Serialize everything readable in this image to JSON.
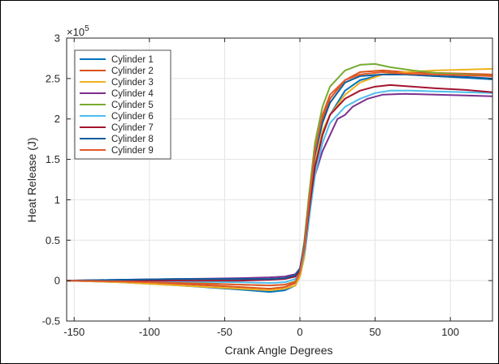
{
  "chart_data": {
    "type": "line",
    "xlabel": "Crank Angle Degrees",
    "ylabel": "Heat Release (J)",
    "y_exponent_label": "×10",
    "y_exponent_power": "5",
    "xlim": [
      -155,
      128
    ],
    "ylim": [
      -0.5,
      3
    ],
    "xticks": [
      -150,
      -100,
      -50,
      0,
      50,
      100
    ],
    "yticks": [
      -0.5,
      0,
      0.5,
      1,
      1.5,
      2,
      2.5,
      3
    ],
    "ytick_labels": [
      "-0.5",
      "0",
      "0.5",
      "1",
      "1.5",
      "2",
      "2.5",
      "3"
    ],
    "grid": true,
    "legend_position": "top-left",
    "series": [
      {
        "name": "Cylinder 1",
        "color": "#0072BD",
        "points": [
          [
            -155,
            0
          ],
          [
            -120,
            -0.02
          ],
          [
            -80,
            -0.06
          ],
          [
            -40,
            -0.11
          ],
          [
            -20,
            -0.14
          ],
          [
            -10,
            -0.12
          ],
          [
            -3,
            -0.06
          ],
          [
            0,
            0.05
          ],
          [
            3,
            0.3
          ],
          [
            6,
            0.75
          ],
          [
            10,
            1.4
          ],
          [
            15,
            1.8
          ],
          [
            20,
            2.05
          ],
          [
            30,
            2.35
          ],
          [
            40,
            2.48
          ],
          [
            55,
            2.55
          ],
          [
            70,
            2.55
          ],
          [
            90,
            2.53
          ],
          [
            110,
            2.51
          ],
          [
            128,
            2.49
          ]
        ]
      },
      {
        "name": "Cylinder 2",
        "color": "#D95319",
        "points": [
          [
            -155,
            0
          ],
          [
            -120,
            -0.01
          ],
          [
            -80,
            -0.04
          ],
          [
            -40,
            -0.08
          ],
          [
            -20,
            -0.1
          ],
          [
            -10,
            -0.08
          ],
          [
            -3,
            -0.03
          ],
          [
            0,
            0.1
          ],
          [
            3,
            0.4
          ],
          [
            6,
            0.9
          ],
          [
            10,
            1.55
          ],
          [
            15,
            2.0
          ],
          [
            20,
            2.25
          ],
          [
            30,
            2.48
          ],
          [
            40,
            2.58
          ],
          [
            55,
            2.6
          ],
          [
            70,
            2.58
          ],
          [
            90,
            2.57
          ],
          [
            110,
            2.56
          ],
          [
            128,
            2.55
          ]
        ]
      },
      {
        "name": "Cylinder 3",
        "color": "#EDB120",
        "points": [
          [
            -155,
            0
          ],
          [
            -120,
            -0.02
          ],
          [
            -80,
            -0.06
          ],
          [
            -40,
            -0.1
          ],
          [
            -20,
            -0.12
          ],
          [
            -10,
            -0.1
          ],
          [
            -3,
            -0.06
          ],
          [
            0,
            0.05
          ],
          [
            3,
            0.3
          ],
          [
            6,
            0.8
          ],
          [
            10,
            1.45
          ],
          [
            15,
            1.85
          ],
          [
            20,
            2.05
          ],
          [
            30,
            2.3
          ],
          [
            40,
            2.45
          ],
          [
            55,
            2.55
          ],
          [
            70,
            2.58
          ],
          [
            90,
            2.6
          ],
          [
            110,
            2.61
          ],
          [
            128,
            2.62
          ]
        ]
      },
      {
        "name": "Cylinder 4",
        "color": "#7E2F8E",
        "points": [
          [
            -155,
            0
          ],
          [
            -120,
            0.01
          ],
          [
            -80,
            0.02
          ],
          [
            -40,
            0.03
          ],
          [
            -20,
            0.04
          ],
          [
            -10,
            0.05
          ],
          [
            -3,
            0.08
          ],
          [
            0,
            0.15
          ],
          [
            3,
            0.4
          ],
          [
            6,
            0.8
          ],
          [
            10,
            1.3
          ],
          [
            15,
            1.6
          ],
          [
            20,
            1.8
          ],
          [
            25,
            2.0
          ],
          [
            30,
            2.05
          ],
          [
            35,
            2.15
          ],
          [
            40,
            2.2
          ],
          [
            45,
            2.25
          ],
          [
            55,
            2.3
          ],
          [
            70,
            2.31
          ],
          [
            90,
            2.3
          ],
          [
            110,
            2.29
          ],
          [
            128,
            2.28
          ]
        ]
      },
      {
        "name": "Cylinder 5",
        "color": "#77AC30",
        "points": [
          [
            -155,
            0
          ],
          [
            -120,
            0.0
          ],
          [
            -80,
            -0.02
          ],
          [
            -40,
            -0.05
          ],
          [
            -20,
            -0.06
          ],
          [
            -10,
            -0.05
          ],
          [
            -3,
            -0.01
          ],
          [
            0,
            0.12
          ],
          [
            3,
            0.5
          ],
          [
            6,
            1.05
          ],
          [
            10,
            1.7
          ],
          [
            15,
            2.15
          ],
          [
            20,
            2.4
          ],
          [
            30,
            2.6
          ],
          [
            40,
            2.67
          ],
          [
            50,
            2.68
          ],
          [
            60,
            2.64
          ],
          [
            75,
            2.6
          ],
          [
            90,
            2.57
          ],
          [
            110,
            2.55
          ],
          [
            128,
            2.53
          ]
        ]
      },
      {
        "name": "Cylinder 6",
        "color": "#4DBEEE",
        "points": [
          [
            -155,
            0
          ],
          [
            -120,
            0.0
          ],
          [
            -80,
            -0.01
          ],
          [
            -40,
            -0.02
          ],
          [
            -20,
            -0.03
          ],
          [
            -10,
            -0.02
          ],
          [
            -3,
            0.02
          ],
          [
            0,
            0.1
          ],
          [
            3,
            0.35
          ],
          [
            6,
            0.75
          ],
          [
            10,
            1.3
          ],
          [
            15,
            1.7
          ],
          [
            20,
            1.95
          ],
          [
            30,
            2.15
          ],
          [
            40,
            2.25
          ],
          [
            50,
            2.32
          ],
          [
            60,
            2.35
          ],
          [
            75,
            2.35
          ],
          [
            90,
            2.34
          ],
          [
            110,
            2.33
          ],
          [
            128,
            2.32
          ]
        ]
      },
      {
        "name": "Cylinder 7",
        "color": "#A2142F",
        "points": [
          [
            -155,
            0
          ],
          [
            -120,
            0.0
          ],
          [
            -80,
            0.0
          ],
          [
            -40,
            0.0
          ],
          [
            -20,
            0.01
          ],
          [
            -10,
            0.02
          ],
          [
            -3,
            0.05
          ],
          [
            0,
            0.12
          ],
          [
            3,
            0.4
          ],
          [
            6,
            0.85
          ],
          [
            10,
            1.4
          ],
          [
            15,
            1.8
          ],
          [
            20,
            2.05
          ],
          [
            30,
            2.25
          ],
          [
            40,
            2.35
          ],
          [
            50,
            2.4
          ],
          [
            60,
            2.42
          ],
          [
            75,
            2.4
          ],
          [
            90,
            2.38
          ],
          [
            110,
            2.36
          ],
          [
            128,
            2.33
          ]
        ]
      },
      {
        "name": "Cylinder 8",
        "color": "#0E5C9C",
        "points": [
          [
            -155,
            0
          ],
          [
            -120,
            0.01
          ],
          [
            -80,
            0.02
          ],
          [
            -40,
            0.02
          ],
          [
            -20,
            0.02
          ],
          [
            -10,
            0.03
          ],
          [
            -3,
            0.07
          ],
          [
            0,
            0.15
          ],
          [
            3,
            0.45
          ],
          [
            6,
            0.95
          ],
          [
            10,
            1.55
          ],
          [
            15,
            1.95
          ],
          [
            20,
            2.2
          ],
          [
            30,
            2.45
          ],
          [
            40,
            2.53
          ],
          [
            55,
            2.55
          ],
          [
            70,
            2.55
          ],
          [
            90,
            2.53
          ],
          [
            110,
            2.52
          ],
          [
            128,
            2.5
          ]
        ]
      },
      {
        "name": "Cylinder 9",
        "color": "#E2592A",
        "points": [
          [
            -155,
            0
          ],
          [
            -120,
            -0.01
          ],
          [
            -80,
            -0.03
          ],
          [
            -40,
            -0.05
          ],
          [
            -20,
            -0.06
          ],
          [
            -10,
            -0.05
          ],
          [
            -3,
            -0.02
          ],
          [
            0,
            0.1
          ],
          [
            3,
            0.42
          ],
          [
            6,
            0.95
          ],
          [
            10,
            1.6
          ],
          [
            15,
            2.05
          ],
          [
            20,
            2.3
          ],
          [
            30,
            2.48
          ],
          [
            40,
            2.55
          ],
          [
            55,
            2.58
          ],
          [
            70,
            2.56
          ],
          [
            90,
            2.55
          ],
          [
            110,
            2.54
          ],
          [
            128,
            2.53
          ]
        ]
      }
    ]
  }
}
